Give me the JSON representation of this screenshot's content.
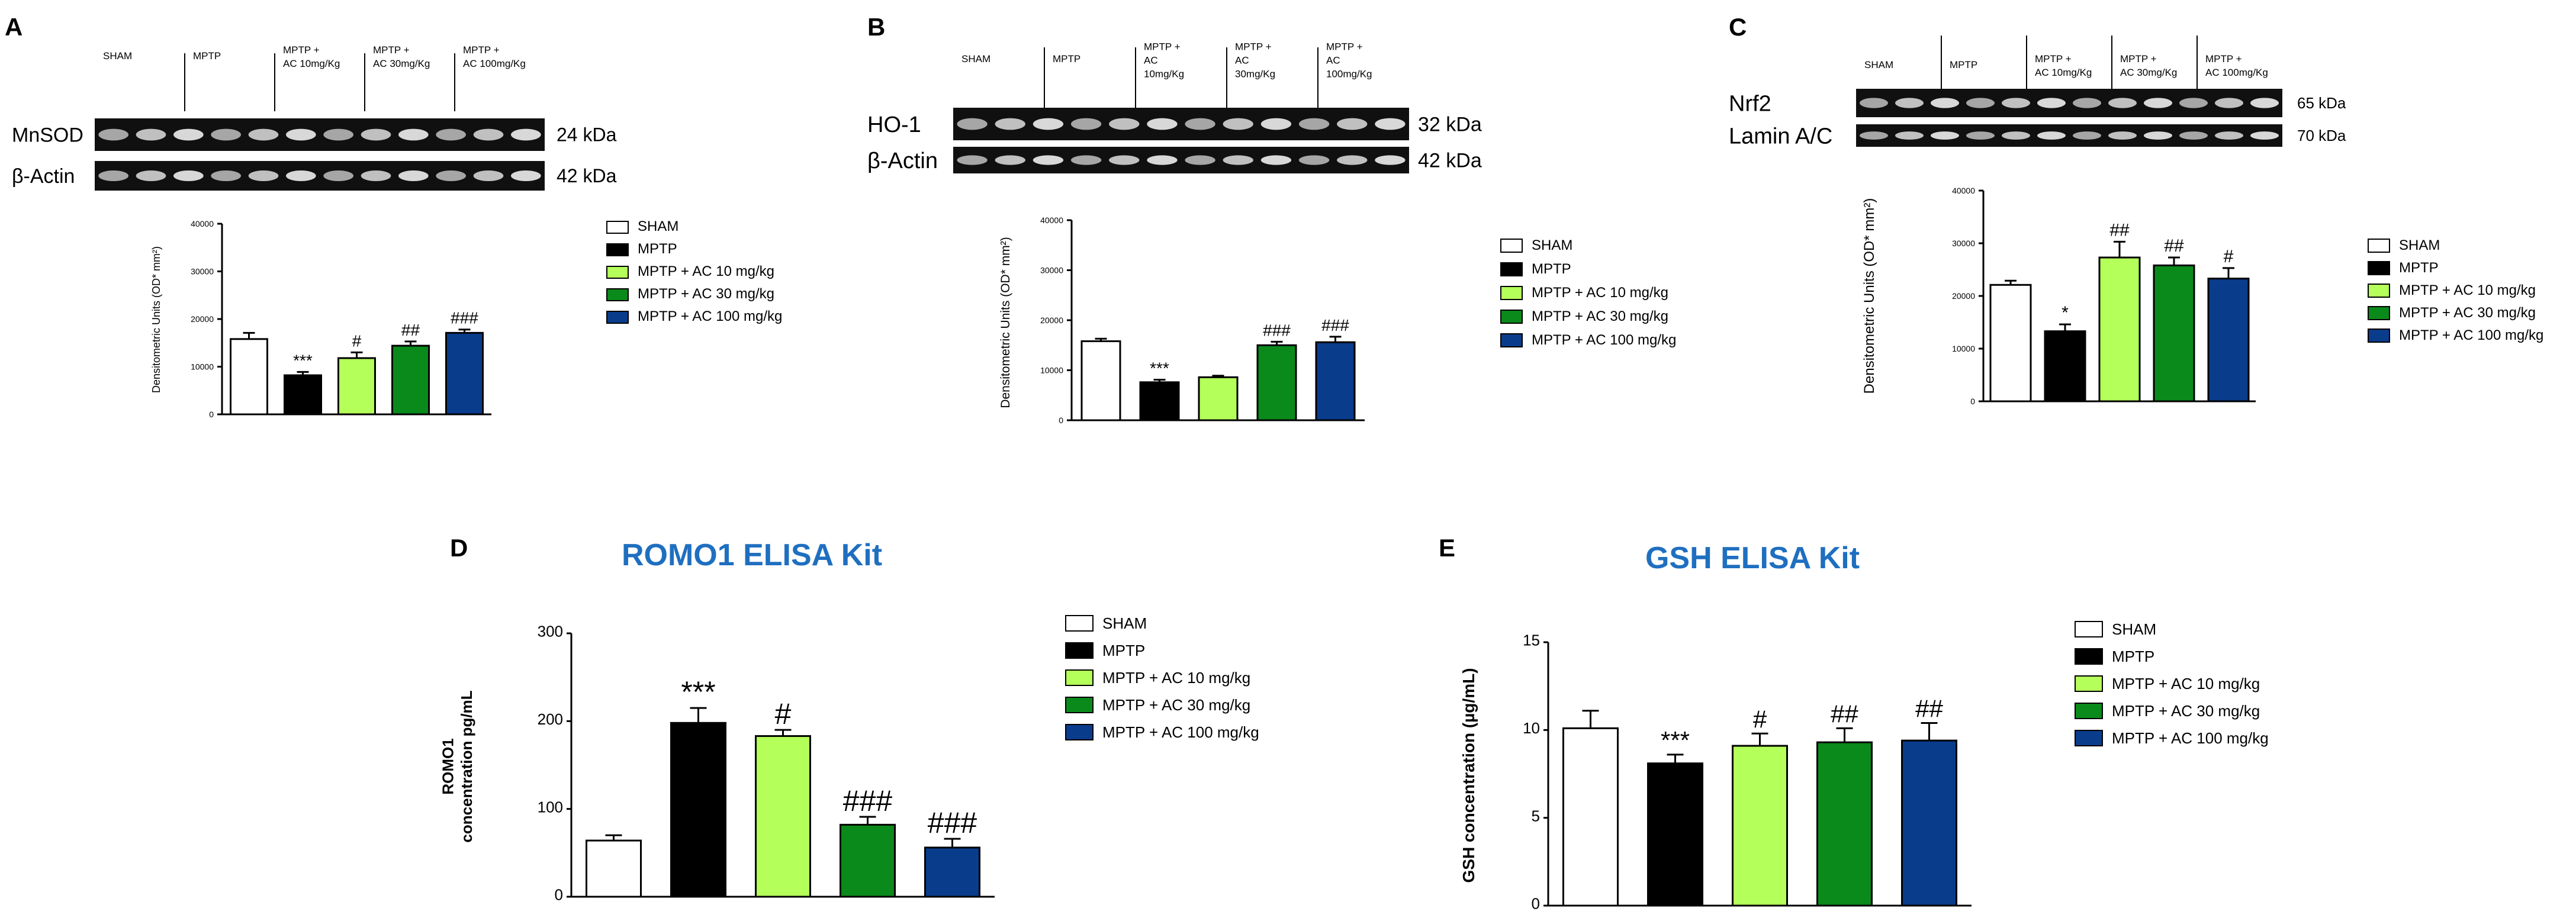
{
  "palette": [
    "#ffffff",
    "#000000",
    "#b4ff5a",
    "#0a8a1a",
    "#0a3c8c"
  ],
  "legend": [
    "SHAM",
    "MPTP",
    "MPTP + AC 10 mg/kg",
    "MPTP + AC 30 mg/kg",
    "MPTP + AC 100 mg/kg"
  ],
  "panels": {
    "A": {
      "letter": "A",
      "lanes": [
        "SHAM",
        "MPTP",
        "MPTP +\nAC 10mg/Kg",
        "MPTP +\nAC 30mg/Kg",
        "MPTP +\nAC 100mg/Kg"
      ],
      "blots": [
        {
          "name": "MnSOD",
          "kda": "24 kDa"
        },
        {
          "name": "β-Actin",
          "kda": "42 kDa"
        }
      ]
    },
    "B": {
      "letter": "B",
      "lanes": [
        "SHAM",
        "MPTP",
        "MPTP +\nAC\n10mg/Kg",
        "MPTP +\nAC\n30mg/Kg",
        "MPTP +\nAC\n100mg/Kg"
      ],
      "blots": [
        {
          "name": "HO-1",
          "kda": "32 kDa"
        },
        {
          "name": "β-Actin",
          "kda": "42 kDa"
        }
      ]
    },
    "C": {
      "letter": "C",
      "lanes": [
        "SHAM",
        "MPTP",
        "MPTP +\nAC 10mg/Kg",
        "MPTP +\nAC 30mg/Kg",
        "MPTP +\nAC 100mg/Kg"
      ],
      "blots": [
        {
          "name": "Nrf2",
          "kda": "65 kDa"
        },
        {
          "name": "Lamin A/C",
          "kda": "70 kDa"
        }
      ]
    },
    "D": {
      "letter": "D",
      "title": "ROMO1 ELISA Kit"
    },
    "E": {
      "letter": "E",
      "title": "GSH ELISA Kit"
    }
  },
  "chart_data": [
    {
      "id": "A",
      "type": "bar",
      "categories": [
        "SHAM",
        "MPTP",
        "MPTP + AC 10 mg/kg",
        "MPTP + AC 30 mg/kg",
        "MPTP + AC 100 mg/kg"
      ],
      "values": [
        15800,
        8200,
        11800,
        14400,
        17100
      ],
      "errors": [
        1300,
        700,
        1200,
        900,
        700
      ],
      "annotations": [
        "",
        "***",
        "#",
        "##",
        "###"
      ],
      "ylabel": "Densitometric Units (OD* mm²)",
      "ylim": [
        0,
        40000
      ],
      "yticks": [
        "0",
        "10000",
        "20000",
        "30000",
        "40000"
      ]
    },
    {
      "id": "B",
      "type": "bar",
      "categories": [
        "SHAM",
        "MPTP",
        "MPTP + AC 10 mg/kg",
        "MPTP + AC 30 mg/kg",
        "MPTP + AC 100 mg/kg"
      ],
      "values": [
        15800,
        7600,
        8600,
        15000,
        15600
      ],
      "errors": [
        500,
        500,
        300,
        700,
        1100
      ],
      "annotations": [
        "",
        "***",
        "",
        "###",
        "###"
      ],
      "ylabel": "Densitometric Units (OD* mm²)",
      "ylim": [
        0,
        40000
      ],
      "yticks": [
        "0",
        "10000",
        "20000",
        "30000",
        "40000"
      ]
    },
    {
      "id": "C",
      "type": "bar",
      "categories": [
        "SHAM",
        "MPTP",
        "MPTP + AC 10 mg/kg",
        "MPTP + AC 30 mg/kg",
        "MPTP + AC 100 mg/kg"
      ],
      "values": [
        22100,
        13300,
        27300,
        25800,
        23300
      ],
      "errors": [
        800,
        1300,
        3000,
        1500,
        2000
      ],
      "annotations": [
        "",
        "*",
        "##",
        "##",
        "#"
      ],
      "ylabel": "Densitometric Units (OD* mm²)",
      "ylim": [
        0,
        40000
      ],
      "yticks": [
        "0",
        "10000",
        "20000",
        "30000",
        "40000"
      ]
    },
    {
      "id": "D",
      "type": "bar",
      "title": "ROMO1 ELISA Kit",
      "categories": [
        "SHAM",
        "MPTP",
        "MPTP + AC 10 mg/kg",
        "MPTP + AC 30 mg/kg",
        "MPTP + AC 100 mg/kg"
      ],
      "values": [
        64,
        198,
        183,
        82,
        56
      ],
      "errors": [
        6,
        17,
        7,
        9,
        10
      ],
      "annotations": [
        "",
        "***",
        "#",
        "###",
        "###"
      ],
      "ylabel": "ROMO1\nconcentration pg/mL",
      "ylim": [
        0,
        300
      ],
      "yticks": [
        "0",
        "100",
        "200",
        "300"
      ]
    },
    {
      "id": "E",
      "type": "bar",
      "title": "GSH ELISA Kit",
      "categories": [
        "SHAM",
        "MPTP",
        "MPTP + AC 10 mg/kg",
        "MPTP + AC 30 mg/kg",
        "MPTP + AC 100 mg/kg"
      ],
      "values": [
        10.1,
        8.1,
        9.1,
        9.3,
        9.4
      ],
      "errors": [
        1.0,
        0.5,
        0.7,
        0.8,
        1.0
      ],
      "annotations": [
        "",
        "***",
        "#",
        "##",
        "##"
      ],
      "ylabel": "GSH concentration (µg/mL)",
      "ylim": [
        0,
        15
      ],
      "yticks": [
        "0",
        "5",
        "10",
        "15"
      ]
    }
  ]
}
